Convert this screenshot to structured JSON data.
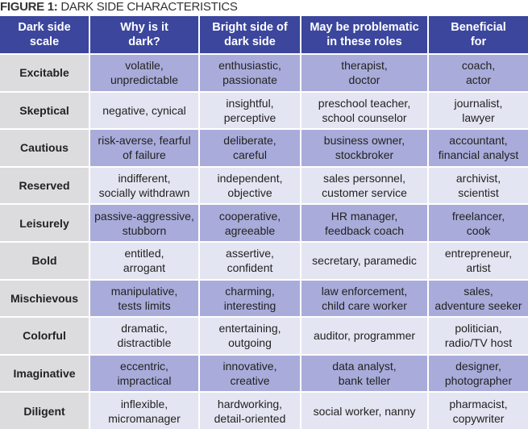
{
  "title": {
    "label": "FIGURE 1:",
    "text": "DARK SIDE CHARACTERISTICS"
  },
  "table": {
    "header": [
      [
        "Dark side",
        "scale"
      ],
      [
        "Why is it",
        "dark?"
      ],
      [
        "Bright side of",
        "dark side"
      ],
      [
        "May be problematic",
        "in these roles"
      ],
      [
        "Beneficial",
        "for"
      ]
    ],
    "rows": [
      [
        [
          "Excitable"
        ],
        [
          "volatile,",
          "unpredictable"
        ],
        [
          "enthusiastic,",
          "passionate"
        ],
        [
          "therapist,",
          "doctor"
        ],
        [
          "coach,",
          "actor"
        ]
      ],
      [
        [
          "Skeptical"
        ],
        [
          "negative, cynical"
        ],
        [
          "insightful,",
          "perceptive"
        ],
        [
          "preschool teacher,",
          "school counselor"
        ],
        [
          "journalist,",
          "lawyer"
        ]
      ],
      [
        [
          "Cautious"
        ],
        [
          "risk-averse, fearful",
          "of failure"
        ],
        [
          "deliberate,",
          "careful"
        ],
        [
          "business owner,",
          "stockbroker"
        ],
        [
          "accountant,",
          "financial analyst"
        ]
      ],
      [
        [
          "Reserved"
        ],
        [
          "indifferent,",
          "socially withdrawn"
        ],
        [
          "independent,",
          "objective"
        ],
        [
          "sales personnel,",
          "customer service"
        ],
        [
          "archivist,",
          "scientist"
        ]
      ],
      [
        [
          "Leisurely"
        ],
        [
          "passive-aggressive,",
          "stubborn"
        ],
        [
          "cooperative,",
          "agreeable"
        ],
        [
          "HR manager,",
          "feedback coach"
        ],
        [
          "freelancer,",
          "cook"
        ]
      ],
      [
        [
          "Bold"
        ],
        [
          "entitled,",
          "arrogant"
        ],
        [
          "assertive,",
          "confident"
        ],
        [
          "secretary, paramedic"
        ],
        [
          "entrepreneur,",
          "artist"
        ]
      ],
      [
        [
          "Mischievous"
        ],
        [
          "manipulative,",
          "tests limits"
        ],
        [
          "charming,",
          "interesting"
        ],
        [
          "law enforcement,",
          "child care worker"
        ],
        [
          "sales,",
          "adventure seeker"
        ]
      ],
      [
        [
          "Colorful"
        ],
        [
          "dramatic,",
          "distractible"
        ],
        [
          "entertaining,",
          "outgoing"
        ],
        [
          "auditor, programmer"
        ],
        [
          "politician,",
          "radio/TV host"
        ]
      ],
      [
        [
          "Imaginative"
        ],
        [
          "eccentric,",
          "impractical"
        ],
        [
          "innovative,",
          "creative"
        ],
        [
          "data analyst,",
          "bank teller"
        ],
        [
          "designer,",
          "photographer"
        ]
      ],
      [
        [
          "Diligent"
        ],
        [
          "inflexible,",
          "micromanager"
        ],
        [
          "hardworking,",
          "detail-oriented"
        ],
        [
          "social worker, nanny"
        ],
        [
          "pharmacist,",
          "copywriter"
        ]
      ]
    ]
  }
}
